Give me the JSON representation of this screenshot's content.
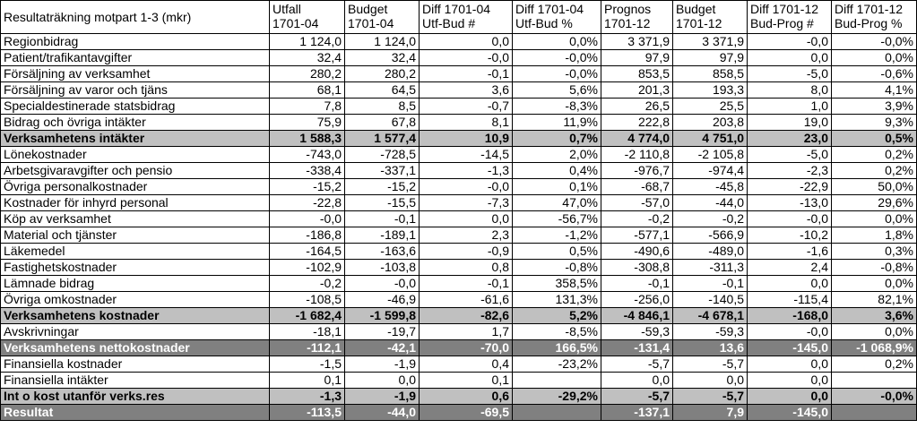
{
  "table": {
    "title": "Resultaträkning motpart 1-3 (mkr)",
    "columns": [
      {
        "line1": "Utfall",
        "line2": "1701-04"
      },
      {
        "line1": "Budget",
        "line2": "1701-04"
      },
      {
        "line1": "Diff 1701-04",
        "line2": "Utf-Bud #"
      },
      {
        "line1": "Diff 1701-04",
        "line2": "Utf-Bud %"
      },
      {
        "line1": "Prognos",
        "line2": "1701-12"
      },
      {
        "line1": "Budget",
        "line2": "1701-12"
      },
      {
        "line1": "Diff 1701-12",
        "line2": "Bud-Prog #"
      },
      {
        "line1": "Diff 1701-12",
        "line2": "Bud-Prog %"
      }
    ],
    "rows": [
      {
        "label": "Regionbidrag",
        "style": "normal",
        "values": [
          "1 124,0",
          "1 124,0",
          "0,0",
          "0,0%",
          "3 371,9",
          "3 371,9",
          "-0,0",
          "-0,0%"
        ]
      },
      {
        "label": "Patient/trafikantavgifter",
        "style": "normal",
        "values": [
          "32,4",
          "32,4",
          "-0,0",
          "-0,0%",
          "97,9",
          "97,9",
          "0,0",
          "0,0%"
        ]
      },
      {
        "label": "Försäljning av verksamhet",
        "style": "normal",
        "values": [
          "280,2",
          "280,2",
          "-0,1",
          "-0,0%",
          "853,5",
          "858,5",
          "-5,0",
          "-0,6%"
        ]
      },
      {
        "label": "Försäljning av varor och tjäns",
        "style": "normal",
        "values": [
          "68,1",
          "64,5",
          "3,6",
          "5,6%",
          "201,3",
          "193,3",
          "8,0",
          "4,1%"
        ]
      },
      {
        "label": "Specialdestinerade statsbidrag",
        "style": "normal",
        "values": [
          "7,8",
          "8,5",
          "-0,7",
          "-8,3%",
          "26,5",
          "25,5",
          "1,0",
          "3,9%"
        ]
      },
      {
        "label": "Bidrag och övriga intäkter",
        "style": "normal",
        "values": [
          "75,9",
          "67,8",
          "8,1",
          "11,9%",
          "222,8",
          "203,8",
          "19,0",
          "9,3%"
        ]
      },
      {
        "label": "Verksamhetens intäkter",
        "style": "subtotal",
        "values": [
          "1 588,3",
          "1 577,4",
          "10,9",
          "0,7%",
          "4 774,0",
          "4 751,0",
          "23,0",
          "0,5%"
        ]
      },
      {
        "label": "Lönekostnader",
        "style": "normal",
        "values": [
          "-743,0",
          "-728,5",
          "-14,5",
          "2,0%",
          "-2 110,8",
          "-2 105,8",
          "-5,0",
          "0,2%"
        ]
      },
      {
        "label": "Arbetsgivaravgifter och pensio",
        "style": "normal",
        "values": [
          "-338,4",
          "-337,1",
          "-1,3",
          "0,4%",
          "-976,7",
          "-974,4",
          "-2,3",
          "0,2%"
        ]
      },
      {
        "label": "Övriga personalkostnader",
        "style": "normal",
        "values": [
          "-15,2",
          "-15,2",
          "-0,0",
          "0,1%",
          "-68,7",
          "-45,8",
          "-22,9",
          "50,0%"
        ]
      },
      {
        "label": "Kostnader för inhyrd personal",
        "style": "normal",
        "values": [
          "-22,8",
          "-15,5",
          "-7,3",
          "47,0%",
          "-57,0",
          "-44,0",
          "-13,0",
          "29,6%"
        ]
      },
      {
        "label": "Köp av verksamhet",
        "style": "normal",
        "values": [
          "-0,0",
          "-0,1",
          "0,0",
          "-56,7%",
          "-0,2",
          "-0,2",
          "-0,0",
          "0,0%"
        ]
      },
      {
        "label": "Material och tjänster",
        "style": "normal",
        "values": [
          "-186,8",
          "-189,1",
          "2,3",
          "-1,2%",
          "-577,1",
          "-566,9",
          "-10,2",
          "1,8%"
        ]
      },
      {
        "label": "Läkemedel",
        "style": "normal",
        "values": [
          "-164,5",
          "-163,6",
          "-0,9",
          "0,5%",
          "-490,6",
          "-489,0",
          "-1,6",
          "0,3%"
        ]
      },
      {
        "label": "Fastighetskostnader",
        "style": "normal",
        "values": [
          "-102,9",
          "-103,8",
          "0,8",
          "-0,8%",
          "-308,8",
          "-311,3",
          "2,4",
          "-0,8%"
        ]
      },
      {
        "label": "Lämnade bidrag",
        "style": "normal",
        "values": [
          "-0,2",
          "-0,0",
          "-0,1",
          "358,5%",
          "-0,1",
          "-0,1",
          "0,0",
          "0,0%"
        ]
      },
      {
        "label": "Övriga omkostnader",
        "style": "normal",
        "values": [
          "-108,5",
          "-46,9",
          "-61,6",
          "131,3%",
          "-256,0",
          "-140,5",
          "-115,4",
          "82,1%"
        ]
      },
      {
        "label": "Verksamhetens kostnader",
        "style": "subtotal",
        "values": [
          "-1 682,4",
          "-1 599,8",
          "-82,6",
          "5,2%",
          "-4 846,1",
          "-4 678,1",
          "-168,0",
          "3,6%"
        ]
      },
      {
        "label": "Avskrivningar",
        "style": "normal",
        "values": [
          "-18,1",
          "-19,7",
          "1,7",
          "-8,5%",
          "-59,3",
          "-59,3",
          "-0,0",
          "0,0%"
        ]
      },
      {
        "label": "Verksamhetens nettokostnader",
        "style": "total",
        "values": [
          "-112,1",
          "-42,1",
          "-70,0",
          "166,5%",
          "-131,4",
          "13,6",
          "-145,0",
          "-1 068,9%"
        ]
      },
      {
        "label": "Finansiella kostnader",
        "style": "normal",
        "values": [
          "-1,5",
          "-1,9",
          "0,4",
          "-23,2%",
          "-5,7",
          "-5,7",
          "0,0",
          "0,2%"
        ]
      },
      {
        "label": "Finansiella intäkter",
        "style": "normal",
        "values": [
          "0,1",
          "0,0",
          "0,1",
          "",
          "0,0",
          "0,0",
          "0,0",
          ""
        ]
      },
      {
        "label": "Int o kost utanför verks.res",
        "style": "subtotal",
        "values": [
          "-1,3",
          "-1,9",
          "0,6",
          "-29,2%",
          "-5,7",
          "-5,7",
          "0,0",
          "-0,0%"
        ]
      },
      {
        "label": "Resultat",
        "style": "total",
        "values": [
          "-113,5",
          "-44,0",
          "-69,5",
          "",
          "-137,1",
          "7,9",
          "-145,0",
          ""
        ]
      }
    ]
  }
}
